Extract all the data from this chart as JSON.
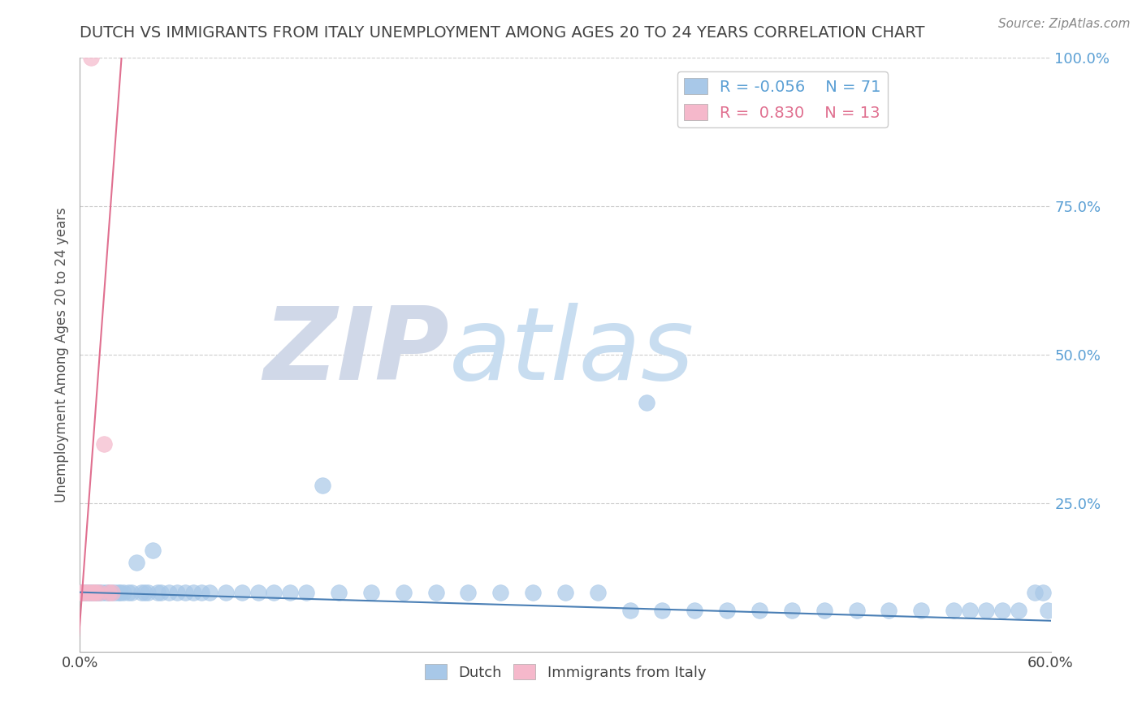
{
  "title": "DUTCH VS IMMIGRANTS FROM ITALY UNEMPLOYMENT AMONG AGES 20 TO 24 YEARS CORRELATION CHART",
  "source": "Source: ZipAtlas.com",
  "ylabel": "Unemployment Among Ages 20 to 24 years",
  "xlim": [
    0.0,
    0.6
  ],
  "ylim": [
    0.0,
    1.0
  ],
  "xticks": [
    0.0,
    0.1,
    0.2,
    0.3,
    0.4,
    0.5,
    0.6
  ],
  "xticklabels": [
    "0.0%",
    "",
    "",
    "",
    "",
    "",
    "60.0%"
  ],
  "yticks": [
    0.0,
    0.25,
    0.5,
    0.75,
    1.0
  ],
  "yticklabels": [
    "",
    "25.0%",
    "50.0%",
    "75.0%",
    "100.0%"
  ],
  "dutch_color": "#a8c8e8",
  "italy_color": "#f5b8cb",
  "dutch_R": -0.056,
  "dutch_N": 71,
  "italy_R": 0.83,
  "italy_N": 13,
  "dutch_line_color": "#4a7fb5",
  "italy_line_color": "#e07090",
  "watermark_zip": "ZIP",
  "watermark_atlas": "atlas",
  "watermark_color_zip": "#d0d8e8",
  "watermark_color_atlas": "#c8ddf0",
  "background_color": "#ffffff",
  "grid_color": "#cccccc",
  "title_color": "#444444",
  "dutch_x": [
    0.001,
    0.002,
    0.003,
    0.004,
    0.005,
    0.006,
    0.007,
    0.008,
    0.009,
    0.01,
    0.011,
    0.012,
    0.013,
    0.015,
    0.017,
    0.018,
    0.02,
    0.022,
    0.024,
    0.025,
    0.027,
    0.03,
    0.032,
    0.035,
    0.038,
    0.04,
    0.042,
    0.045,
    0.048,
    0.05,
    0.055,
    0.06,
    0.065,
    0.07,
    0.075,
    0.08,
    0.09,
    0.1,
    0.11,
    0.12,
    0.13,
    0.14,
    0.15,
    0.16,
    0.18,
    0.2,
    0.22,
    0.24,
    0.26,
    0.28,
    0.3,
    0.32,
    0.34,
    0.35,
    0.36,
    0.38,
    0.4,
    0.42,
    0.44,
    0.46,
    0.48,
    0.5,
    0.52,
    0.54,
    0.55,
    0.56,
    0.57,
    0.58,
    0.59,
    0.595,
    0.598
  ],
  "dutch_y": [
    0.1,
    0.1,
    0.1,
    0.1,
    0.1,
    0.1,
    0.1,
    0.1,
    0.1,
    0.1,
    0.1,
    0.1,
    0.1,
    0.1,
    0.1,
    0.1,
    0.1,
    0.1,
    0.1,
    0.1,
    0.1,
    0.1,
    0.1,
    0.15,
    0.1,
    0.1,
    0.1,
    0.17,
    0.1,
    0.1,
    0.1,
    0.1,
    0.1,
    0.1,
    0.1,
    0.1,
    0.1,
    0.1,
    0.1,
    0.1,
    0.1,
    0.1,
    0.28,
    0.1,
    0.1,
    0.1,
    0.1,
    0.1,
    0.1,
    0.1,
    0.1,
    0.1,
    0.07,
    0.42,
    0.07,
    0.07,
    0.07,
    0.07,
    0.07,
    0.07,
    0.07,
    0.07,
    0.07,
    0.07,
    0.07,
    0.07,
    0.07,
    0.07,
    0.1,
    0.1,
    0.07
  ],
  "italy_x": [
    0.001,
    0.002,
    0.003,
    0.005,
    0.006,
    0.007,
    0.008,
    0.009,
    0.01,
    0.012,
    0.015,
    0.018,
    0.02
  ],
  "italy_y": [
    0.1,
    0.1,
    0.1,
    0.1,
    0.1,
    1.0,
    0.1,
    0.1,
    0.1,
    0.1,
    0.35,
    0.1,
    0.1
  ],
  "italy_line_x_start": -0.005,
  "italy_line_x_end": 0.085,
  "dutch_line_slope": -0.08,
  "dutch_line_intercept": 0.1
}
